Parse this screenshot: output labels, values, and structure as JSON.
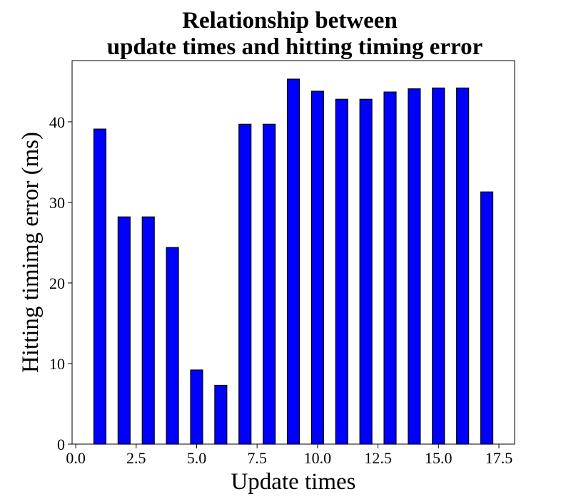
{
  "chart_data": {
    "type": "bar",
    "title_lines": [
      "Relationship between",
      "update times and hitting timing error"
    ],
    "xlabel": "Update times",
    "ylabel": "Hitting timimg error (ms)",
    "x": [
      1,
      2,
      3,
      4,
      5,
      6,
      7,
      8,
      9,
      10,
      11,
      12,
      13,
      14,
      15,
      16,
      17
    ],
    "values": [
      39.1,
      28.2,
      28.2,
      24.4,
      9.2,
      7.3,
      39.7,
      39.7,
      45.3,
      43.8,
      42.8,
      42.8,
      43.7,
      44.1,
      44.2,
      44.2,
      31.3
    ],
    "bar_width": 0.5,
    "xlim": [
      -0.15,
      18.15
    ],
    "ylim": [
      0,
      47.6
    ],
    "xticks": [
      0.0,
      2.5,
      5.0,
      7.5,
      10.0,
      12.5,
      15.0,
      17.5
    ],
    "xtick_labels": [
      "0.0",
      "2.5",
      "5.0",
      "7.5",
      "10.0",
      "12.5",
      "15.0",
      "17.5"
    ],
    "yticks": [
      0,
      10,
      20,
      30,
      40
    ],
    "ytick_labels": [
      "0",
      "10",
      "20",
      "30",
      "40"
    ],
    "bar_color": "#0000ff",
    "edge_color": "#000000",
    "grid": false,
    "legend": "none"
  }
}
